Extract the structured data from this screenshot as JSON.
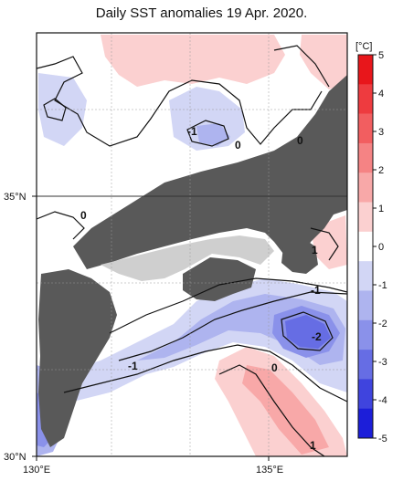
{
  "title": "Daily SST anomalies 19 Apr. 2020.",
  "map": {
    "x_ticks": [
      "130°E",
      "135°E"
    ],
    "y_ticks": [
      "35°N",
      "30°N"
    ],
    "contour_labels": [
      "-1",
      "0",
      "0",
      "0",
      "1",
      "-1",
      "-2",
      "-1",
      "0",
      "1"
    ]
  },
  "colorbar": {
    "unit": "[°C]",
    "ticks": [
      "5",
      "4",
      "3",
      "2",
      "1",
      "0",
      "-1",
      "-2",
      "-3",
      "-4",
      "-5"
    ],
    "colors": [
      "#e8161b",
      "#ee3b3f",
      "#f25e60",
      "#f58384",
      "#f8a8a8",
      "#fbd0d0",
      "#ffffff",
      "#d2d6f5",
      "#aeb4ef",
      "#8a91ea",
      "#666de4",
      "#3f44de",
      "#1c1ed9"
    ]
  }
}
